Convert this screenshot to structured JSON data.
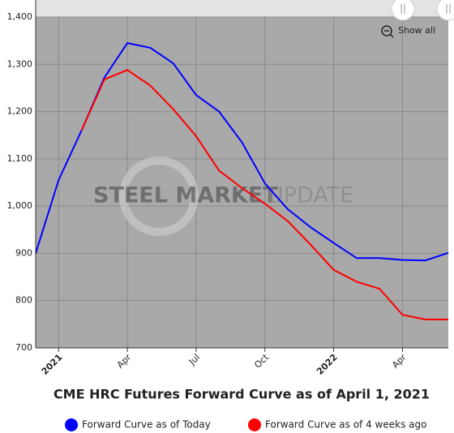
{
  "chart_data": {
    "type": "line",
    "title": "CME HRC Futures Forward Curve as of April 1, 2021",
    "categories": [
      null,
      "2021",
      null,
      null,
      "Apr",
      null,
      null,
      "Jul",
      null,
      null,
      "Oct",
      null,
      null,
      "2022",
      null,
      null,
      "Apr",
      null,
      null
    ],
    "series": [
      {
        "name": "Forward Curve as of Today",
        "color": "#0000ff",
        "values": [
          900,
          1055,
          1160,
          1272,
          1345,
          1335,
          1302,
          1235,
          1200,
          1135,
          1048,
          993,
          955,
          922,
          890,
          890,
          886,
          885,
          901
        ]
      },
      {
        "name": "Forward Curve as of 4 weeks ago",
        "color": "#ff0000",
        "values": [
          null,
          null,
          1160,
          1268,
          1288,
          1255,
          1205,
          1148,
          1075,
          1038,
          1005,
          968,
          918,
          865,
          840,
          825,
          770,
          760,
          760
        ]
      }
    ],
    "ylim": [
      700,
      1400
    ],
    "yticks": [
      700,
      800,
      900,
      {
        "value": 1000,
        "label": "1,000"
      },
      {
        "value": 1100,
        "label": "1,100"
      },
      {
        "value": 1200,
        "label": "1,200"
      },
      {
        "value": 1300,
        "label": "1,300"
      },
      {
        "value": 1400,
        "label": "1,400"
      }
    ],
    "grid": true,
    "watermark": [
      "STEEL MARKET",
      "UPDATE"
    ],
    "button": "Show all"
  }
}
